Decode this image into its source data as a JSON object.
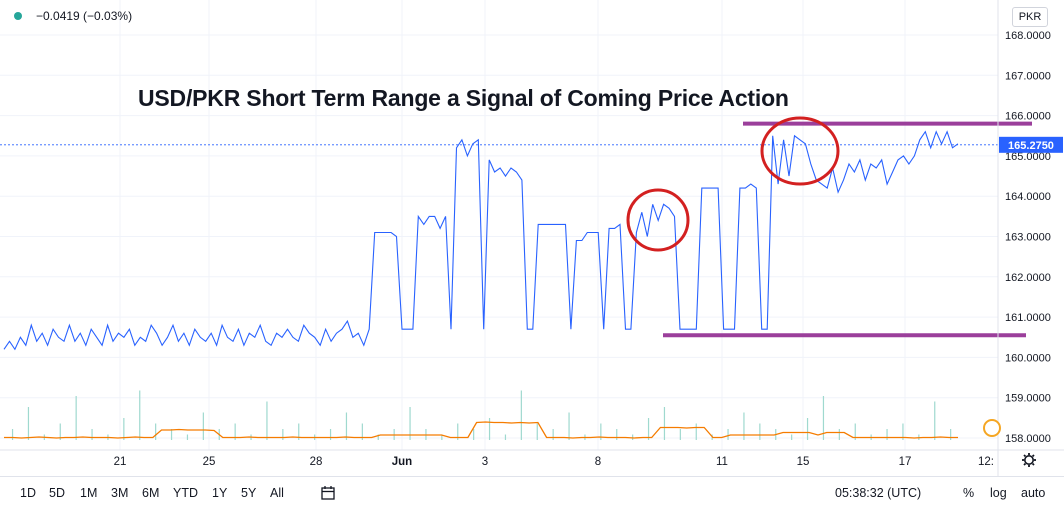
{
  "legend": {
    "change": "−0.0419 (−0.03%)"
  },
  "currency": "PKR",
  "annotation_title": "USD/PKR Short Term Range a Signal of Coming Price Action",
  "last_price_label": "165.2750",
  "toolbar": {
    "ranges": [
      "1D",
      "5D",
      "1M",
      "3M",
      "6M",
      "YTD",
      "1Y",
      "5Y",
      "All"
    ],
    "clock": "05:38:32 (UTC)",
    "percent": "%",
    "log": "log",
    "auto": "auto"
  },
  "colors": {
    "price_line": "#2962ff",
    "volume_line": "#f57c00",
    "volume_bars": "#9fd9cf",
    "range_lines": "#9b3f9b",
    "circles": "#d32020",
    "last_price_badge": "#2962ff"
  },
  "chart_data": {
    "type": "line",
    "x_tick_labels": [
      "21",
      "25",
      "28",
      "Jun",
      "3",
      "8",
      "11",
      "15",
      "17",
      "12:"
    ],
    "y_tick_labels": [
      "158.0000",
      "159.0000",
      "160.0000",
      "161.0000",
      "162.0000",
      "163.0000",
      "164.0000",
      "165.0000",
      "166.0000",
      "167.0000",
      "168.0000"
    ],
    "ylim": [
      157.85,
      168.3
    ],
    "last_price": 165.275,
    "annotations": {
      "resistance_level": 165.8,
      "support_level": 160.55
    },
    "series": [
      {
        "values": [
          160.2,
          160.4,
          160.2,
          160.5,
          160.3,
          160.8,
          160.4,
          160.6,
          160.3,
          160.7,
          160.5,
          160.4,
          160.8,
          160.4,
          160.6,
          160.3,
          160.7,
          160.5,
          160.3,
          160.8,
          160.4,
          160.6,
          160.5,
          160.7,
          160.3,
          160.5,
          160.4,
          160.8,
          160.6,
          160.3,
          160.5,
          160.8,
          160.4,
          160.6,
          160.3,
          160.7,
          160.5,
          160.4,
          160.6,
          160.3,
          160.8,
          160.5,
          160.4,
          160.7,
          160.3,
          160.6,
          160.5,
          160.8,
          160.4,
          160.3,
          160.6,
          160.5,
          160.7,
          160.5,
          160.4,
          160.8,
          160.6,
          160.5,
          160.3,
          160.7,
          160.4,
          160.6,
          160.7,
          160.9,
          160.5,
          160.6,
          160.3,
          160.7,
          163.1,
          163.1,
          163.1,
          163.1,
          163.0,
          160.7,
          160.7,
          160.7,
          163.5,
          163.3,
          163.5,
          163.5,
          163.2,
          163.5,
          160.7,
          165.2,
          165.4,
          165.0,
          165.3,
          165.4,
          160.7,
          164.9,
          164.6,
          164.7,
          164.5,
          164.7,
          164.6,
          164.4,
          160.7,
          160.7,
          163.3,
          163.3,
          163.3,
          163.3,
          163.3,
          163.3,
          160.7,
          162.9,
          162.9,
          163.1,
          163.1,
          163.1,
          160.7,
          163.2,
          163.2,
          163.3,
          160.7,
          160.7,
          163.1,
          163.6,
          163.0,
          163.8,
          163.4,
          163.8,
          163.7,
          163.5,
          160.7,
          160.7,
          160.7,
          160.7,
          164.2,
          164.2,
          164.2,
          164.2,
          160.7,
          160.7,
          160.7,
          164.2,
          164.2,
          164.3,
          164.2,
          160.7,
          160.7,
          165.5,
          164.3,
          165.4,
          164.5,
          165.5,
          165.4,
          165.3,
          164.8,
          164.4,
          164.3,
          164.2,
          164.7,
          164.1,
          164.4,
          164.8,
          164.6,
          164.9,
          164.4,
          164.8,
          164.7,
          164.9,
          164.3,
          164.6,
          164.9,
          165.0,
          164.8,
          165.0,
          165.4,
          165.6,
          165.2,
          165.6,
          165.3,
          165.6,
          165.2,
          165.3
        ]
      }
    ],
    "volume_line": [
      0.05,
      0.05,
      0.04,
      0.05,
      0.06,
      0.05,
      0.04,
      0.05,
      0.05,
      0.06,
      0.05,
      0.05,
      0.05,
      0.04,
      0.05,
      0.06,
      0.05,
      0.05,
      0.2,
      0.2,
      0.21,
      0.2,
      0.2,
      0.2,
      0.19,
      0.05,
      0.05,
      0.05,
      0.06,
      0.05,
      0.05,
      0.05,
      0.05,
      0.06,
      0.05,
      0.05,
      0.05,
      0.05,
      0.05,
      0.06,
      0.05,
      0.05,
      0.05,
      0.1,
      0.1,
      0.1,
      0.1,
      0.1,
      0.1,
      0.1,
      0.1,
      0.05,
      0.05,
      0.05,
      0.35,
      0.36,
      0.35,
      0.35,
      0.34,
      0.35,
      0.34,
      0.35,
      0.05,
      0.05,
      0.05,
      0.04,
      0.05,
      0.05,
      0.06,
      0.05,
      0.05,
      0.05,
      0.04,
      0.05,
      0.05,
      0.25,
      0.25,
      0.25,
      0.24,
      0.25,
      0.25,
      0.05,
      0.05,
      0.1,
      0.1,
      0.1,
      0.1,
      0.1,
      0.1,
      0.15,
      0.15,
      0.15,
      0.15,
      0.1,
      0.15,
      0.15,
      0.15,
      0.05,
      0.05,
      0.05,
      0.05,
      0.05,
      0.05,
      0.05,
      0.04,
      0.05,
      0.05,
      0.06,
      0.05,
      0.05
    ],
    "volume_bars": [
      0.2,
      0.6,
      0.1,
      0.3,
      0.8,
      0.2,
      0.1,
      0.4,
      0.9,
      0.3,
      0.2,
      0.1,
      0.5,
      0.2,
      0.3,
      0.1,
      0.7,
      0.2,
      0.3,
      0.1,
      0.2,
      0.5,
      0.3,
      0.1,
      0.2,
      0.6,
      0.2,
      0.1,
      0.3,
      0.2,
      0.4,
      0.1,
      0.9,
      0.3,
      0.2,
      0.5,
      0.1,
      0.3,
      0.2,
      0.1,
      0.4,
      0.6,
      0.2,
      0.3,
      0.1,
      0.2,
      0.5,
      0.3,
      0.2,
      0.1,
      0.4,
      0.8,
      0.2,
      0.3,
      0.1,
      0.2,
      0.3,
      0.1,
      0.7,
      0.2
    ]
  }
}
